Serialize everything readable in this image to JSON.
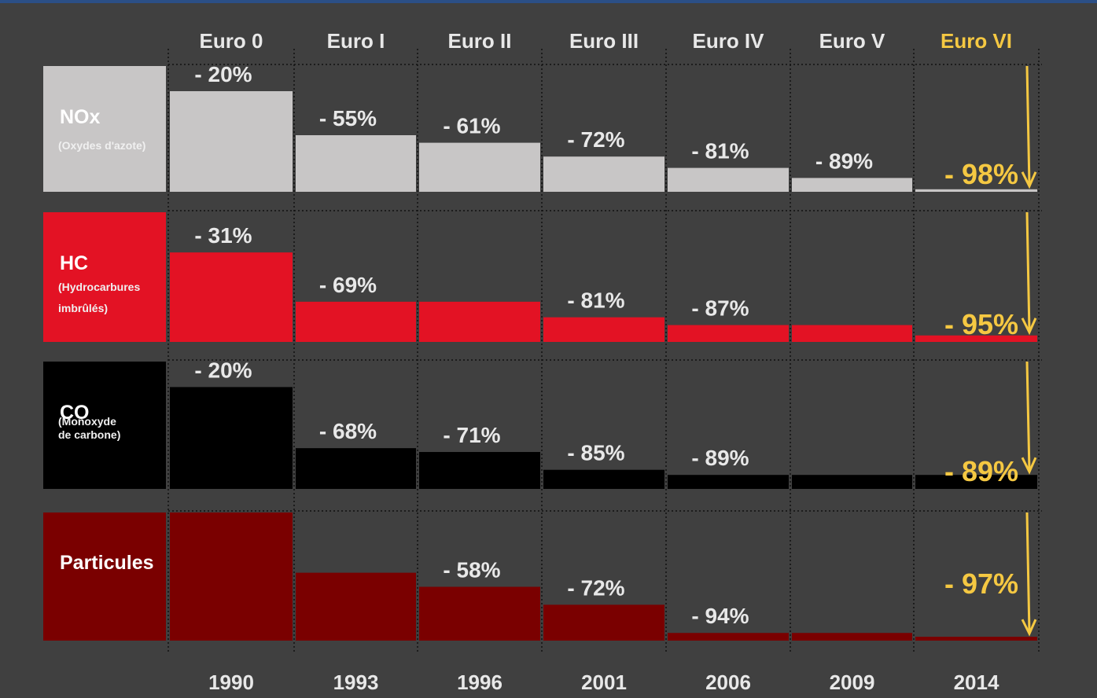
{
  "chart_data": {
    "type": "bar",
    "stages": [
      "Euro 0",
      "Euro I",
      "Euro II",
      "Euro III",
      "Euro IV",
      "Euro V",
      "Euro VI"
    ],
    "categories": [
      "1990",
      "1993",
      "1996",
      "2001",
      "2006",
      "2009",
      "2014"
    ],
    "ylim": [
      -100,
      0
    ],
    "series": [
      {
        "name": "NOx",
        "description": [
          "(Oxydes d'azote)"
        ],
        "color": "#c8c6c6",
        "values": [
          -20,
          -55,
          -61,
          -72,
          -81,
          -89,
          -98
        ],
        "value_labels": [
          "- 20%",
          "- 55%",
          "- 61%",
          "- 72%",
          "- 81%",
          "- 89%",
          "- 98%"
        ]
      },
      {
        "name": "HC",
        "description": [
          "(Hydrocarbures",
          " imbrûlés)"
        ],
        "color": "#e31224",
        "values": [
          -31,
          -69,
          -69,
          -81,
          -87,
          -87,
          -95
        ],
        "value_labels": [
          "- 31%",
          "- 69%",
          null,
          "- 81%",
          "- 87%",
          null,
          "- 95%"
        ]
      },
      {
        "name": "CO",
        "description": [
          "(Monoxyde",
          " de carbone)"
        ],
        "color": "#000000",
        "values": [
          -20,
          -68,
          -71,
          -85,
          -89,
          -89,
          -89
        ],
        "value_labels": [
          "- 20%",
          "- 68%",
          "- 71%",
          "- 85%",
          "- 89%",
          null,
          "- 89%"
        ]
      },
      {
        "name": "Particules",
        "color": "#7a0000",
        "values": [
          0,
          -47,
          -58,
          -72,
          -94,
          -94,
          -97
        ],
        "value_labels": [
          null,
          null,
          "- 58%",
          "- 72%",
          "- 94%",
          null,
          "- 97%"
        ]
      }
    ]
  }
}
